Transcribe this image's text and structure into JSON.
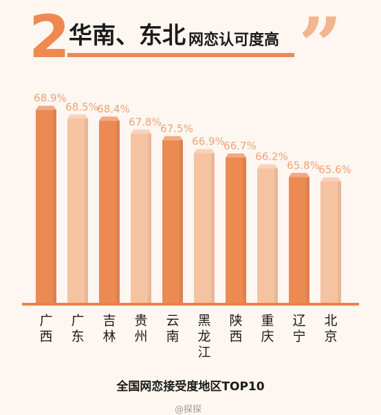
{
  "header": {
    "number": "2",
    "title_main": "华南、东北",
    "title_sub": "网恋认可度高",
    "quote": "”"
  },
  "footer": {
    "title": "全国网恋接受度地区TOP10",
    "source": "@探探"
  },
  "colors": {
    "dark_bar": "#ec8a54",
    "light_bar": "#f6c3a2",
    "label": "#f0a274",
    "axis": "#e9834a"
  },
  "chart_data": {
    "type": "bar",
    "title": "全国网恋接受度地区TOP10",
    "categories": [
      "广西",
      "广东",
      "吉林",
      "贵州",
      "云南",
      "黑龙江",
      "陕西",
      "重庆",
      "辽宁",
      "北京"
    ],
    "values": [
      68.9,
      68.5,
      68.4,
      67.8,
      67.5,
      66.9,
      66.7,
      66.2,
      65.8,
      65.6
    ],
    "value_labels": [
      "68.9%",
      "68.5%",
      "68.4%",
      "67.8%",
      "67.5%",
      "66.9%",
      "66.7%",
      "66.2%",
      "65.8%",
      "65.6%"
    ],
    "bar_shades": [
      "dark",
      "light",
      "dark",
      "light",
      "dark",
      "light",
      "dark",
      "light",
      "dark",
      "light"
    ],
    "xlabel": "",
    "ylabel": "",
    "grid": false,
    "legend": "none"
  }
}
